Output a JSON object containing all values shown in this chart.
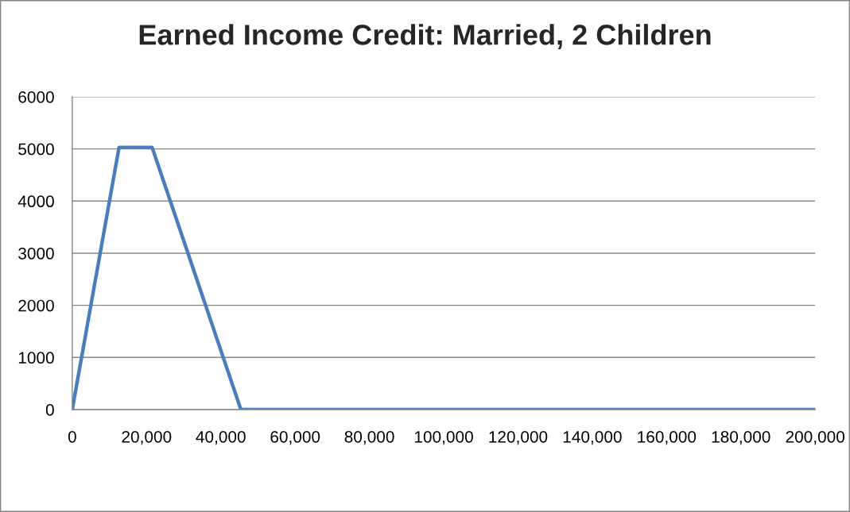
{
  "chart_data": {
    "type": "line",
    "title": "Earned Income Credit: Married, 2 Children",
    "x": [
      0,
      12600,
      21500,
      45400,
      200000
    ],
    "series": [
      {
        "color": "#4a7ebb",
        "values": [
          0,
          5030,
          5030,
          0,
          0
        ]
      }
    ],
    "xlim": [
      0,
      200000
    ],
    "ylim": [
      0,
      6000
    ],
    "xticks": [
      0,
      {
        "value": 20000,
        "label": "20,000"
      },
      {
        "value": 40000,
        "label": "40,000"
      },
      {
        "value": 60000,
        "label": "60,000"
      },
      {
        "value": 80000,
        "label": "80,000"
      },
      {
        "value": 100000,
        "label": "100,000"
      },
      {
        "value": 120000,
        "label": "120,000"
      },
      {
        "value": 140000,
        "label": "140,000"
      },
      {
        "value": 160000,
        "label": "160,000"
      },
      {
        "value": 180000,
        "label": "180,000"
      },
      {
        "value": 200000,
        "label": "200,000"
      }
    ],
    "yticks": [
      0,
      1000,
      2000,
      3000,
      4000,
      5000,
      6000
    ],
    "grid": "y",
    "marker": "none",
    "line_style": "solid"
  }
}
